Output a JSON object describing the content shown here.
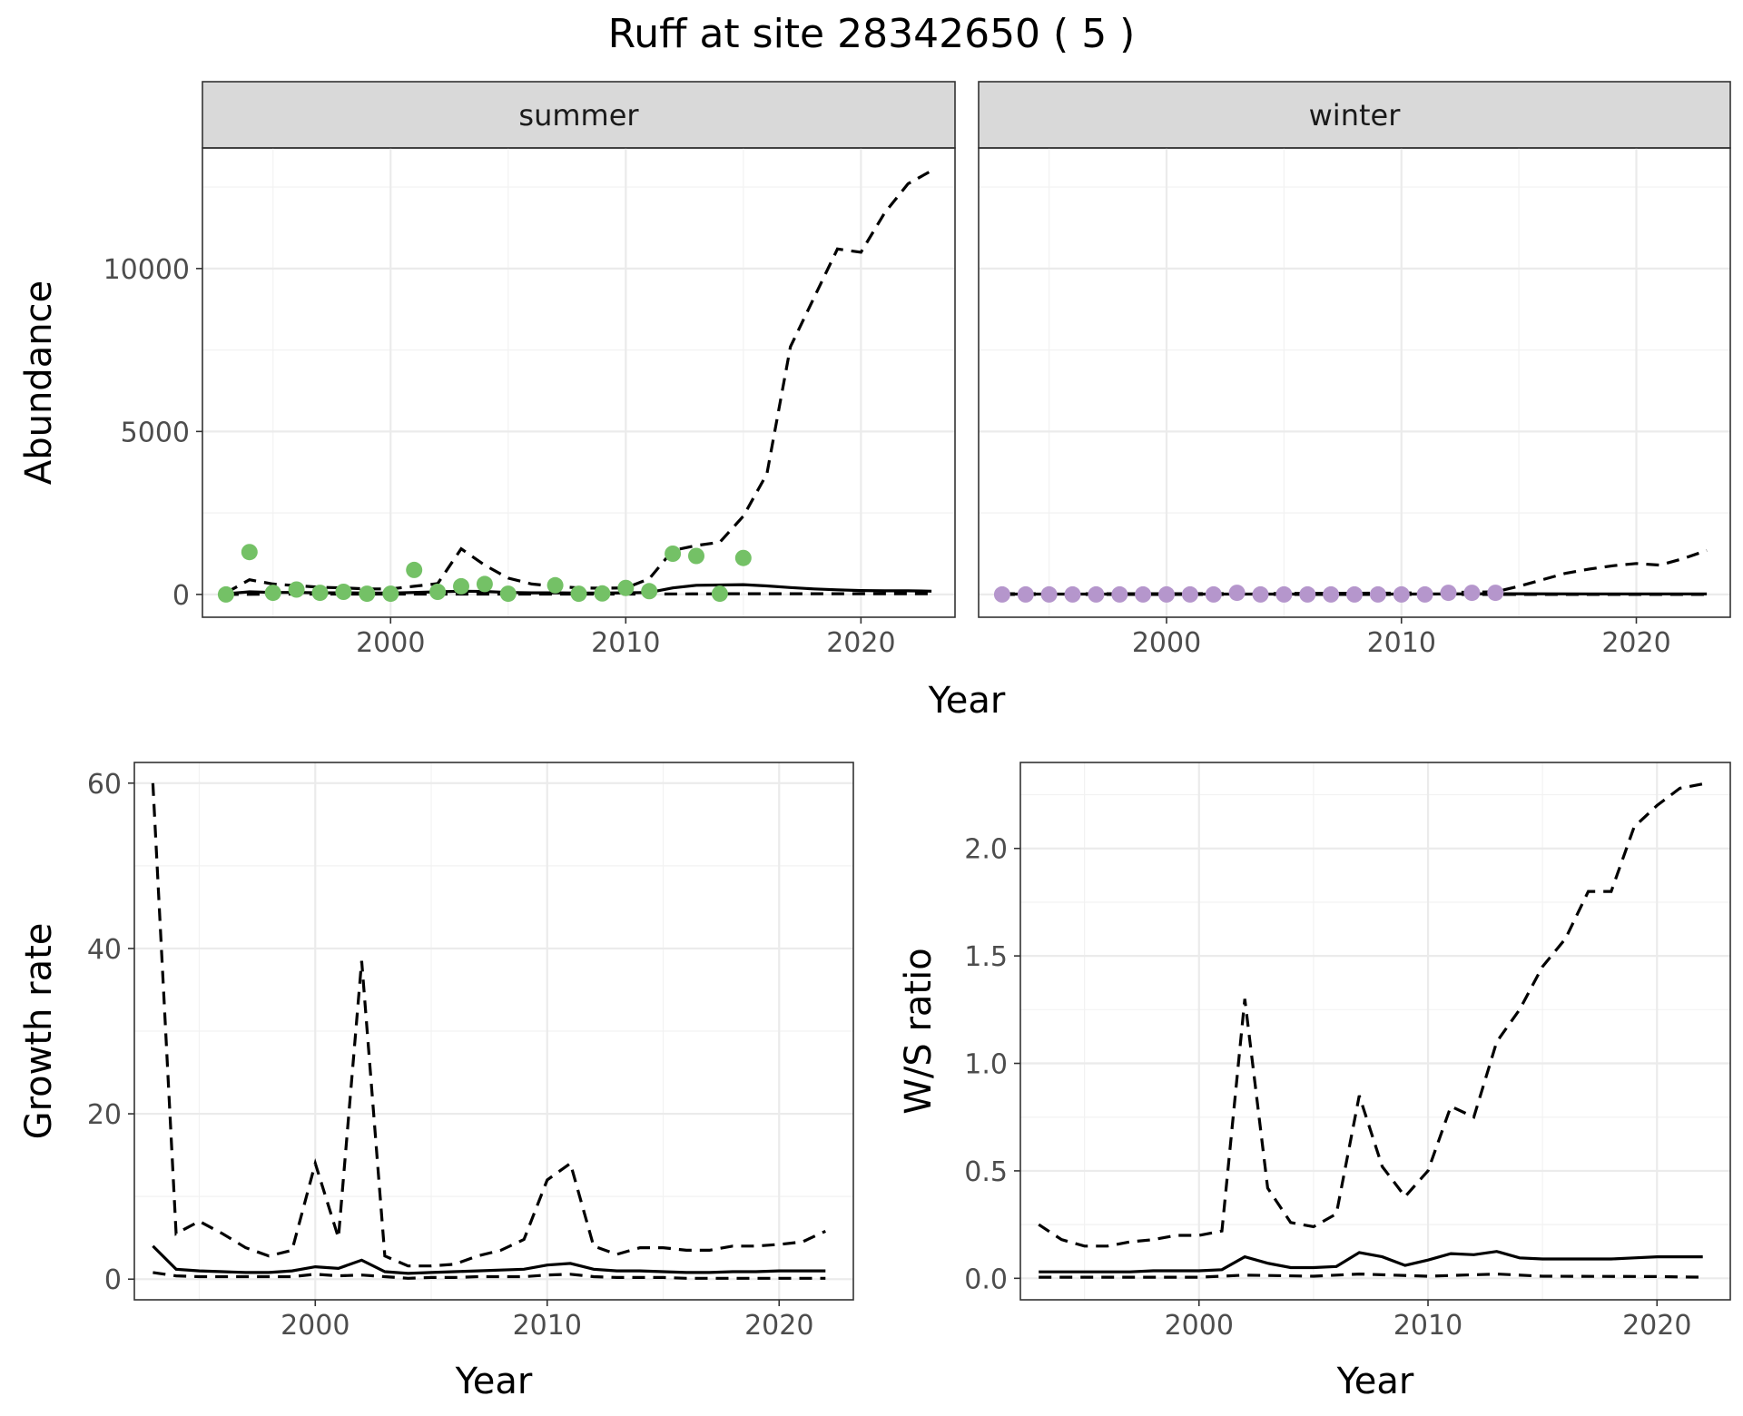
{
  "title": "Ruff at site 28342650 ( 5 )",
  "colors": {
    "summer_points": "#74c166",
    "winter_points": "#b596cc",
    "lines": "#000000"
  },
  "chart_data": [
    {
      "id": "abundance",
      "type": "line",
      "facets": [
        "summer",
        "winter"
      ],
      "xlabel": "Year",
      "ylabel": "Abundance",
      "xlim": [
        1992,
        2024
      ],
      "ylim": [
        -700,
        13700
      ],
      "xticks": [
        2000,
        2010,
        2020
      ],
      "yticks": [
        0,
        5000,
        10000
      ],
      "grid": true,
      "panels": [
        {
          "facet": "summer",
          "point_color": "#74c166",
          "points": {
            "x": [
              1993,
              1994,
              1995,
              1996,
              1997,
              1998,
              1999,
              2000,
              2001,
              2002,
              2003,
              2004,
              2005,
              2007,
              2008,
              2009,
              2010,
              2011,
              2012,
              2013,
              2014,
              2015
            ],
            "y": [
              0,
              1300,
              50,
              150,
              50,
              80,
              20,
              20,
              750,
              80,
              250,
              320,
              20,
              280,
              20,
              30,
              200,
              100,
              1250,
              1180,
              20,
              1120
            ]
          },
          "series": [
            {
              "style": "solid",
              "x": [
                1993,
                1994,
                1995,
                1996,
                1997,
                1998,
                1999,
                2000,
                2001,
                2002,
                2003,
                2004,
                2005,
                2006,
                2007,
                2008,
                2009,
                2010,
                2011,
                2012,
                2013,
                2014,
                2015,
                2016,
                2017,
                2018,
                2019,
                2020,
                2021,
                2022,
                2023
              ],
              "y": [
                20,
                80,
                60,
                60,
                50,
                50,
                40,
                40,
                60,
                80,
                100,
                90,
                60,
                50,
                50,
                40,
                40,
                50,
                60,
                200,
                280,
                290,
                300,
                260,
                210,
                170,
                140,
                120,
                110,
                110,
                100
              ]
            },
            {
              "style": "dashed",
              "x": [
                1993,
                1994,
                1995,
                1996,
                1997,
                1998,
                1999,
                2000,
                2001,
                2002,
                2003,
                2004,
                2005,
                2006,
                2007,
                2008,
                2009,
                2010,
                2011,
                2012,
                2013,
                2014,
                2015,
                2016,
                2017,
                2018,
                2019,
                2020,
                2021,
                2022,
                2023
              ],
              "y": [
                50,
                450,
                320,
                270,
                220,
                200,
                170,
                170,
                250,
                330,
                1400,
                900,
                500,
                320,
                250,
                200,
                190,
                200,
                480,
                1350,
                1500,
                1600,
                2400,
                3700,
                7600,
                9100,
                10600,
                10500,
                11700,
                12600,
                13000
              ]
            },
            {
              "style": "dashed",
              "x": [
                1993,
                1995,
                2000,
                2005,
                2010,
                2015,
                2020,
                2023
              ],
              "y": [
                0,
                10,
                10,
                10,
                10,
                20,
                20,
                20
              ]
            }
          ]
        },
        {
          "facet": "winter",
          "point_color": "#b596cc",
          "points": {
            "x": [
              1993,
              1994,
              1995,
              1996,
              1997,
              1998,
              1999,
              2000,
              2001,
              2002,
              2003,
              2004,
              2005,
              2006,
              2007,
              2008,
              2009,
              2010,
              2011,
              2012,
              2013,
              2014
            ],
            "y": [
              0,
              0,
              0,
              0,
              0,
              0,
              0,
              0,
              0,
              0,
              50,
              0,
              0,
              0,
              0,
              0,
              0,
              0,
              0,
              50,
              50,
              50
            ]
          },
          "series": [
            {
              "style": "solid",
              "x": [
                1993,
                2000,
                2010,
                2014,
                2018,
                2023
              ],
              "y": [
                10,
                10,
                10,
                20,
                15,
                15
              ]
            },
            {
              "style": "dashed",
              "x": [
                1993,
                2000,
                2005,
                2010,
                2012,
                2014,
                2015,
                2016,
                2017,
                2018,
                2019,
                2020,
                2021,
                2022,
                2023
              ],
              "y": [
                20,
                20,
                30,
                40,
                60,
                80,
                250,
                450,
                650,
                780,
                880,
                950,
                900,
                1100,
                1350
              ]
            },
            {
              "style": "dashed",
              "x": [
                1993,
                2023
              ],
              "y": [
                0,
                0
              ]
            }
          ]
        }
      ]
    },
    {
      "id": "growth",
      "type": "line",
      "xlabel": "Year",
      "ylabel": "Growth rate",
      "xlim": [
        1992.2,
        2023.2
      ],
      "ylim": [
        -2.5,
        62.5
      ],
      "xticks": [
        2000,
        2010,
        2020
      ],
      "yticks": [
        0,
        20,
        40,
        60
      ],
      "grid": true,
      "series": [
        {
          "style": "solid",
          "x": [
            1993,
            1994,
            1995,
            1996,
            1997,
            1998,
            1999,
            2000,
            2001,
            2002,
            2003,
            2004,
            2005,
            2006,
            2007,
            2008,
            2009,
            2010,
            2011,
            2012,
            2013,
            2014,
            2015,
            2016,
            2017,
            2018,
            2019,
            2020,
            2021,
            2022
          ],
          "y": [
            4,
            1.2,
            1.0,
            0.9,
            0.8,
            0.8,
            1.0,
            1.5,
            1.3,
            2.3,
            0.9,
            0.7,
            0.8,
            0.9,
            1.0,
            1.1,
            1.2,
            1.7,
            1.9,
            1.2,
            1.0,
            1.0,
            0.9,
            0.8,
            0.8,
            0.9,
            0.9,
            1.0,
            1.0,
            1.0
          ]
        },
        {
          "style": "dashed",
          "x": [
            1993,
            1994,
            1995,
            1996,
            1997,
            1998,
            1999,
            2000,
            2001,
            2002,
            2003,
            2004,
            2005,
            2006,
            2007,
            2008,
            2009,
            2010,
            2011,
            2012,
            2013,
            2014,
            2015,
            2016,
            2017,
            2018,
            2019,
            2020,
            2021,
            2022
          ],
          "y": [
            60,
            5.5,
            7,
            5.5,
            3.8,
            2.8,
            3.5,
            14,
            5,
            38.5,
            2.8,
            1.6,
            1.6,
            1.8,
            2.8,
            3.5,
            4.8,
            12,
            14,
            4,
            3,
            3.8,
            3.8,
            3.5,
            3.5,
            4,
            4,
            4.2,
            4.5,
            5.8
          ]
        },
        {
          "style": "dashed",
          "x": [
            1993,
            1994,
            1995,
            1996,
            1997,
            1998,
            1999,
            2000,
            2001,
            2002,
            2003,
            2004,
            2005,
            2006,
            2007,
            2008,
            2009,
            2010,
            2011,
            2012,
            2013,
            2014,
            2015,
            2016,
            2017,
            2018,
            2019,
            2020,
            2021,
            2022
          ],
          "y": [
            0.8,
            0.4,
            0.3,
            0.3,
            0.3,
            0.3,
            0.3,
            0.6,
            0.4,
            0.5,
            0.3,
            0.1,
            0.2,
            0.2,
            0.3,
            0.3,
            0.3,
            0.5,
            0.6,
            0.3,
            0.2,
            0.2,
            0.2,
            0.1,
            0.1,
            0.1,
            0.1,
            0.1,
            0.1,
            0.1
          ]
        }
      ]
    },
    {
      "id": "ratio",
      "type": "line",
      "xlabel": "Year",
      "ylabel": "W/S ratio",
      "xlim": [
        1992.2,
        2023.2
      ],
      "ylim": [
        -0.1,
        2.4
      ],
      "xticks": [
        2000,
        2010,
        2020
      ],
      "yticks": [
        0.0,
        0.5,
        1.0,
        1.5,
        2.0
      ],
      "ytick_labels": [
        "0.0",
        "0.5",
        "1.0",
        "1.5",
        "2.0"
      ],
      "grid": true,
      "series": [
        {
          "style": "solid",
          "x": [
            1993,
            1994,
            1995,
            1996,
            1997,
            1998,
            1999,
            2000,
            2001,
            2002,
            2003,
            2004,
            2005,
            2006,
            2007,
            2008,
            2009,
            2010,
            2011,
            2012,
            2013,
            2014,
            2015,
            2016,
            2017,
            2018,
            2019,
            2020,
            2021,
            2022
          ],
          "y": [
            0.03,
            0.03,
            0.03,
            0.03,
            0.03,
            0.035,
            0.035,
            0.035,
            0.04,
            0.1,
            0.07,
            0.05,
            0.05,
            0.055,
            0.12,
            0.1,
            0.06,
            0.085,
            0.115,
            0.11,
            0.125,
            0.095,
            0.09,
            0.09,
            0.09,
            0.09,
            0.095,
            0.1,
            0.1,
            0.1
          ]
        },
        {
          "style": "dashed",
          "x": [
            1993,
            1994,
            1995,
            1996,
            1997,
            1998,
            1999,
            2000,
            2001,
            2002,
            2003,
            2004,
            2005,
            2006,
            2007,
            2008,
            2009,
            2010,
            2011,
            2012,
            2013,
            2014,
            2015,
            2016,
            2017,
            2018,
            2019,
            2020,
            2021,
            2022
          ],
          "y": [
            0.25,
            0.18,
            0.15,
            0.15,
            0.17,
            0.18,
            0.2,
            0.2,
            0.22,
            1.3,
            0.42,
            0.26,
            0.24,
            0.3,
            0.85,
            0.52,
            0.38,
            0.5,
            0.8,
            0.75,
            1.1,
            1.25,
            1.45,
            1.58,
            1.8,
            1.8,
            2.1,
            2.2,
            2.28,
            2.3
          ]
        },
        {
          "style": "dashed",
          "x": [
            1993,
            1995,
            2000,
            2002,
            2005,
            2007,
            2010,
            2013,
            2015,
            2020,
            2022
          ],
          "y": [
            0.005,
            0.005,
            0.005,
            0.015,
            0.01,
            0.02,
            0.01,
            0.02,
            0.01,
            0.008,
            0.005
          ]
        }
      ]
    }
  ]
}
